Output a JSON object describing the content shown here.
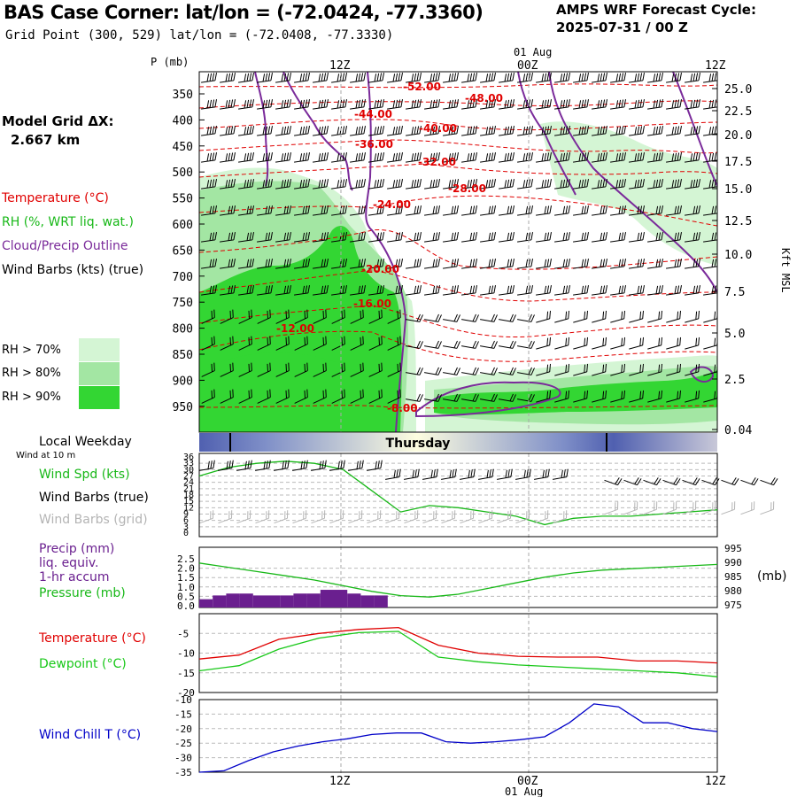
{
  "header": {
    "title": "BAS Case Corner:  lat/lon = (-72.0424, -77.3360)",
    "subtitle": "Grid Point (300, 529) lat/lon = (-72.0408, -77.3330)",
    "forecast_title": "AMPS WRF Forecast Cycle:",
    "forecast_cycle": "2025-07-31 / 00  Z"
  },
  "model_grid": {
    "label": "Model Grid ΔX:",
    "value": "2.667 km"
  },
  "legend": {
    "temperature": "Temperature (°C)",
    "rh": "RH (%, WRT liq. wat.)",
    "cloud": "Cloud/Precip Outline",
    "wind": "Wind Barbs (kts) (true)",
    "rh70": "RH > 70%",
    "rh80": "RH > 80%",
    "rh90": "RH > 90%"
  },
  "colors": {
    "rh70": "#d4f5d4",
    "rh80": "#a3e6a3",
    "rh90": "#33d633",
    "temperature": "#e00000",
    "cloud": "#7a2a9a",
    "precip": "#6a1f8f",
    "pressure": "#18b818",
    "dewpoint": "#18c818",
    "wind_chill": "#0000c8"
  },
  "time_axis": {
    "top_labels": [
      "12Z",
      "00Z",
      "12Z"
    ],
    "top_date": "01 Aug",
    "bottom_labels": [
      "12Z",
      "00Z",
      "12Z"
    ],
    "bottom_date": "01 Aug"
  },
  "weekday": {
    "label": "Local Weekday",
    "day": "Thursday"
  },
  "surface_panel": {
    "wind_note": "Wind at 10 m",
    "wind_spd": "Wind Spd (kts)",
    "barbs_true": "Wind Barbs (true)",
    "barbs_grid": "Wind Barbs (grid)"
  },
  "precip_panel": {
    "precip": "Precip (mm)",
    "liq": "liq. equiv.",
    "accum": "1-hr accum",
    "pressure": "Pressure (mb)",
    "pressure_unit": "(mb)"
  },
  "temp_panel": {
    "temperature": "Temperature (°C)",
    "dewpoint": "Dewpoint (°C)"
  },
  "chill_panel": {
    "wind_chill": "Wind Chill T (°C)"
  },
  "chart_data": [
    {
      "type": "heatmap",
      "name": "cross-section",
      "ylabel": "P (mb)",
      "y_right_label": "Kft MSL",
      "pressure_ticks": [
        350,
        400,
        450,
        500,
        550,
        600,
        650,
        700,
        750,
        800,
        850,
        900,
        950
      ],
      "kft_ticks": [
        "25.0",
        "22.5",
        "20.0",
        "17.5",
        "15.0",
        "12.5",
        "10.0",
        "7.5",
        "5.0",
        "2.5",
        "0.04"
      ],
      "temperature_contour_labels": [
        "-52.00",
        "-48.00",
        "-44.00",
        "-40.00",
        "-36.00",
        "-32.00",
        "-28.00",
        "-24.00",
        "-20.00",
        "-16.00",
        "-12.00",
        "-8.00"
      ]
    },
    {
      "type": "line",
      "name": "wind speed",
      "y_ticks": [
        36,
        33,
        30,
        27,
        24,
        21,
        18,
        15,
        12,
        9,
        6,
        3,
        0
      ],
      "ylim": [
        0,
        36
      ],
      "series": [
        {
          "name": "Wind Spd (kts)",
          "values": [
            27,
            31,
            33,
            34,
            33,
            30,
            20,
            10,
            13,
            12,
            10,
            8,
            4,
            7,
            8,
            8,
            9,
            10,
            11
          ]
        }
      ]
    },
    {
      "type": "bar",
      "name": "precip and pressure",
      "y_ticks": [
        "2.5",
        "2.0",
        "1.5",
        "1.0",
        "0.5",
        "0.0"
      ],
      "y_right_ticks": [
        995,
        990,
        985,
        980,
        975
      ],
      "series": [
        {
          "name": "Precip (mm)",
          "values": [
            0.3,
            0.5,
            0.6,
            0.6,
            0.5,
            0.5,
            0.5,
            0.6,
            0.6,
            0.8,
            0.8,
            0.6,
            0.5,
            0.5
          ]
        },
        {
          "name": "Pressure (mb)",
          "values": [
            991,
            989.5,
            988,
            986.5,
            985,
            983,
            981,
            979.5,
            979,
            980,
            982,
            984,
            986,
            987.5,
            988.5,
            989,
            989.5,
            990,
            990.5
          ]
        }
      ]
    },
    {
      "type": "line",
      "name": "temperature and dewpoint",
      "y_ticks": [
        -5,
        -10,
        -15,
        -20
      ],
      "ylim": [
        -20,
        0
      ],
      "series": [
        {
          "name": "Temperature (°C)",
          "values": [
            -11.5,
            -10.5,
            -6.5,
            -5,
            -4,
            -3.5,
            -8,
            -10,
            -10.8,
            -11,
            -11,
            -12,
            -12,
            -12.5
          ]
        },
        {
          "name": "Dewpoint (°C)",
          "values": [
            -14.5,
            -13.2,
            -9,
            -6.2,
            -4.8,
            -4.5,
            -11,
            -12.2,
            -13,
            -13.5,
            -14,
            -14.5,
            -15,
            -16
          ]
        }
      ]
    },
    {
      "type": "line",
      "name": "wind chill",
      "y_ticks": [
        -10,
        -15,
        -20,
        -25,
        -30,
        -35
      ],
      "ylim": [
        -35,
        -10
      ],
      "series": [
        {
          "name": "Wind Chill T (°C)",
          "values": [
            -35,
            -34.5,
            -31,
            -28,
            -26,
            -24.5,
            -23.5,
            -22,
            -21.5,
            -21.5,
            -24.5,
            -25,
            -24.5,
            -23.8,
            -22.8,
            -18,
            -11.5,
            -12.5,
            -18,
            -18,
            -20,
            -21
          ]
        }
      ]
    }
  ]
}
